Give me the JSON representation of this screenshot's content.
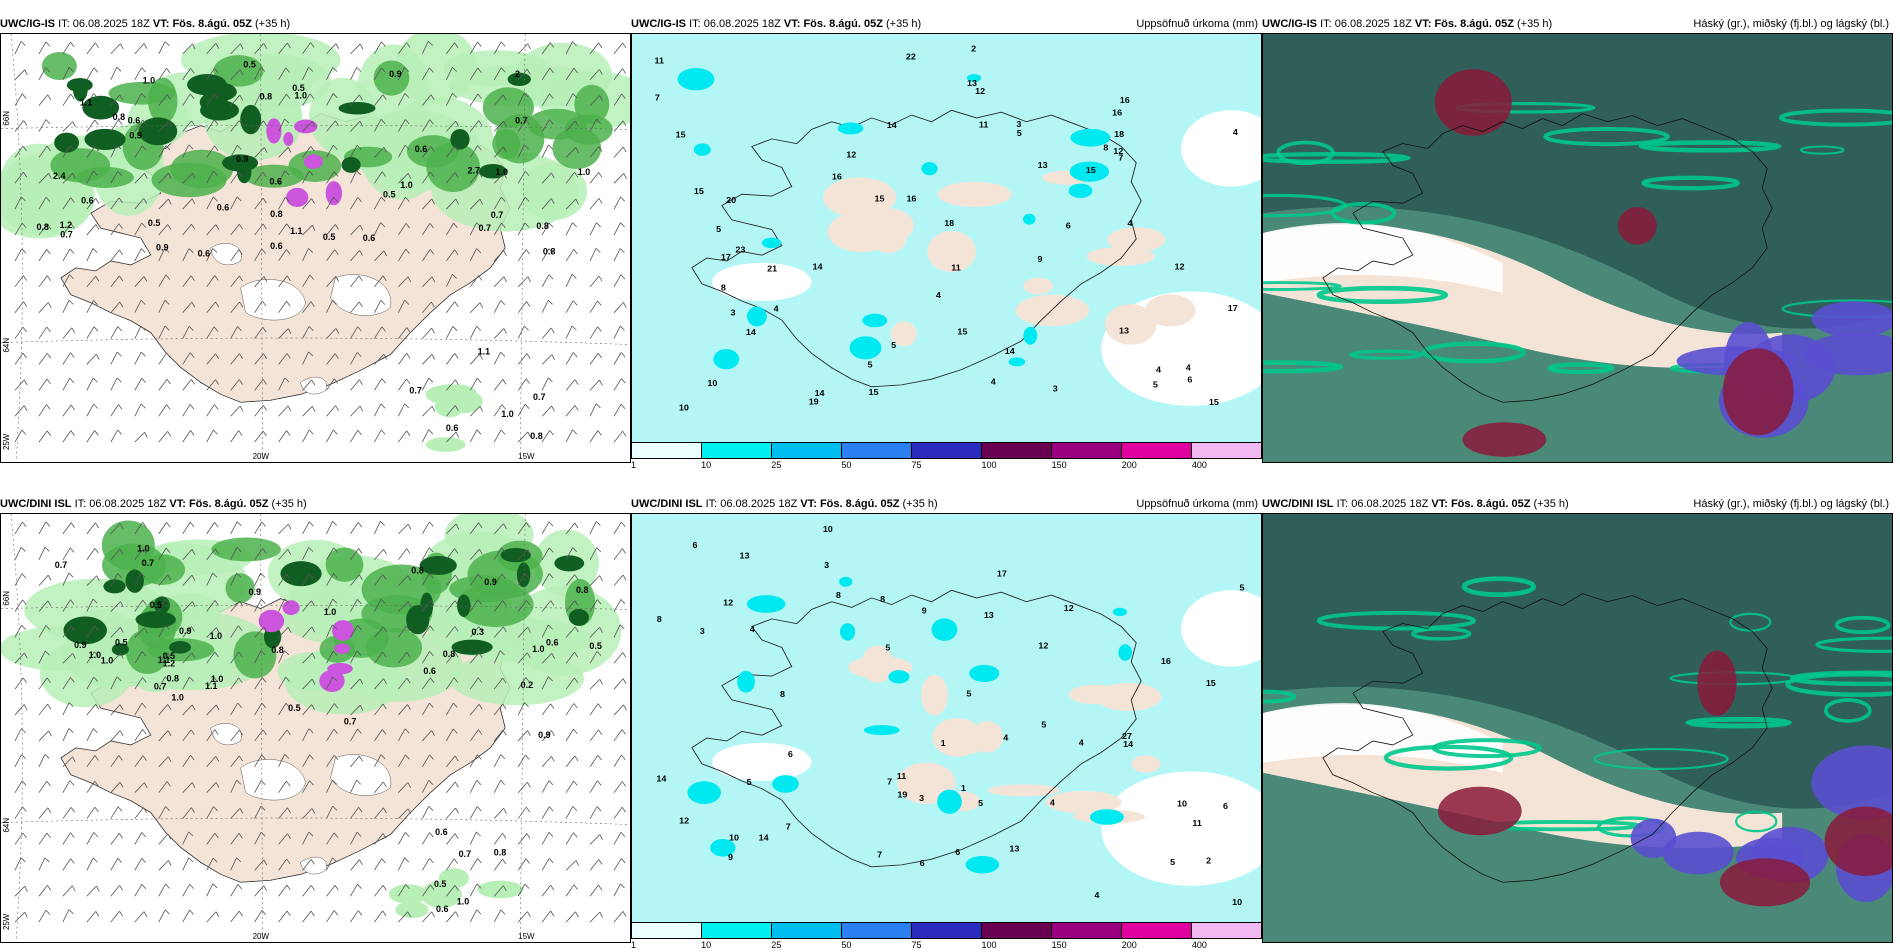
{
  "panels": [
    {
      "id": "top-left",
      "model": "UWC/IG-IS",
      "it_label": "IT:",
      "it_value": "06.08.2025 18Z",
      "vt_label": "VT:",
      "vt_value": "Fös. 8.ágú. 05Z",
      "lead": "(+35 h)",
      "right_title": "",
      "kind": "precip-wind",
      "labels": [
        "0.9",
        "0.6",
        "2",
        "1.0",
        "0.8",
        "0.5",
        "0.7",
        "1.0",
        "1.2",
        "0.6",
        "0.8",
        "1.1",
        "0.8",
        "0.9",
        "1.0",
        "0.6",
        "0.5",
        "0.6",
        "2.4",
        "2.7",
        "1.0",
        "1.1",
        "0.9",
        "0.6",
        "0.8",
        "0.5",
        "0.7",
        "0.7",
        "0.6",
        "0.8",
        "0.9",
        "1.0",
        "0.6",
        "0.6",
        "0.5",
        "0.8",
        "0.5",
        "0.7",
        "1.0",
        "0.7",
        "0.8",
        "0.6",
        "1.1",
        "0.7"
      ],
      "axis": {
        "lat1": "66N",
        "lat2": "64N",
        "lon1": "25W",
        "lon2": "20W",
        "lon3": "15W"
      }
    },
    {
      "id": "top-middle",
      "model": "UWC/IG-IS",
      "it_label": "IT:",
      "it_value": "06.08.2025 18Z",
      "vt_label": "VT:",
      "vt_value": "Fös. 8.ágú. 05Z",
      "lead": "(+35 h)",
      "right_title": "Uppsöfnuð úrkoma (mm)",
      "kind": "accum",
      "labels": [
        "4",
        "2",
        "3",
        "5",
        "4",
        "8",
        "15",
        "11",
        "15",
        "22",
        "17",
        "11",
        "12",
        "12",
        "14",
        "20",
        "11",
        "10",
        "13",
        "12",
        "7",
        "8",
        "4",
        "6",
        "16",
        "15",
        "14",
        "15",
        "14",
        "18",
        "15",
        "16",
        "10",
        "13",
        "14",
        "23",
        "19",
        "18",
        "17",
        "13",
        "14",
        "16",
        "16",
        "21",
        "15",
        "15",
        "12",
        "9",
        "3",
        "3",
        "4",
        "5",
        "6",
        "4",
        "5",
        "4",
        "5",
        "5",
        "7",
        "4"
      ],
      "axis": {}
    },
    {
      "id": "top-right",
      "model": "UWC/IG-IS",
      "it_label": "IT:",
      "it_value": "06.08.2025 18Z",
      "vt_label": "VT:",
      "vt_value": "Fös. 8.ágú. 05Z",
      "lead": "(+35 h)",
      "right_title": "Háský (gr.), miðský (fj.bl.) og lágský (bl.)",
      "kind": "cloud",
      "labels": [],
      "axis": {}
    },
    {
      "id": "bottom-left",
      "model": "UWC/DINI ISL",
      "it_label": "IT:",
      "it_value": "06.08.2025 18Z",
      "vt_label": "VT:",
      "vt_value": "Fös. 8.ágú. 05Z",
      "lead": "(+35 h)",
      "right_title": "",
      "kind": "precip-wind",
      "labels": [
        "1.0",
        "0.9",
        "0.8",
        "0.5",
        "0.9",
        "0.7",
        "1.0",
        "0.5",
        "0.8",
        "0.6",
        "0.9",
        "1.0",
        "0.6",
        "0.7",
        "1.1",
        "0.8",
        "0.7",
        "1.0",
        "0.5",
        "0.3",
        "0.8",
        "1.0",
        "1.2",
        "0.9",
        "0.5",
        "1.0",
        "0.2",
        "0.5",
        "1.0",
        "0.9",
        "0.7",
        "1.0",
        "1.1",
        "0.8",
        "0.7",
        "0.6",
        "0.6",
        "0.5",
        "0.8",
        "1.0"
      ],
      "axis": {
        "lat1": "66N",
        "lat2": "64N",
        "lon1": "25W",
        "lon2": "20W",
        "lon3": "15W"
      }
    },
    {
      "id": "bottom-middle",
      "model": "UWC/DINI ISL",
      "it_label": "IT:",
      "it_value": "06.08.2025 18Z",
      "vt_label": "VT:",
      "vt_value": "Fös. 8.ágú. 05Z",
      "lead": "(+35 h)",
      "right_title": "Uppsöfnuð úrkoma (mm)",
      "kind": "accum",
      "labels": [
        "3",
        "4",
        "5",
        "7",
        "10",
        "12",
        "14",
        "16",
        "8",
        "10",
        "12",
        "14",
        "13",
        "6",
        "4",
        "5",
        "8",
        "10",
        "11",
        "13",
        "7",
        "5",
        "4",
        "3",
        "6",
        "6",
        "8",
        "9",
        "6",
        "5",
        "4",
        "5",
        "7",
        "8",
        "12",
        "14",
        "19",
        "27",
        "17",
        "13",
        "10",
        "11",
        "12",
        "15",
        "9",
        "3",
        "5",
        "5",
        "6",
        "1",
        "1",
        "2",
        "4"
      ],
      "axis": {}
    },
    {
      "id": "bottom-right",
      "model": "UWC/DINI ISL",
      "it_label": "IT:",
      "it_value": "06.08.2025 18Z",
      "vt_label": "VT:",
      "vt_value": "Fös. 8.ágú. 05Z",
      "lead": "(+35 h)",
      "right_title": "Háský (gr.), miðský (fj.bl.) og lágský (bl.)",
      "kind": "cloud",
      "labels": [],
      "axis": {}
    }
  ],
  "colorbar": {
    "ticks": [
      "1",
      "10",
      "25",
      "50",
      "75",
      "100",
      "150",
      "200",
      "400"
    ],
    "colors": [
      "#eaffff",
      "#00f0f0",
      "#00bff0",
      "#2b7ff0",
      "#2b2bc0",
      "#6a0050",
      "#9a0080",
      "#e000a0",
      "#f2b8f2"
    ]
  },
  "palette": {
    "land": "#f4e4d8",
    "sea_accum": "#b4f6f6",
    "green_light": "#b7efb7",
    "green_mid": "#4cb24c",
    "green_dark": "#115e22",
    "magenta": "#cc55dd",
    "cloud_high": "#2f5f58",
    "cloud_mid": "#00c88c",
    "cloud_low": "#5a4fd0",
    "cloud_dark_red": "#8a1a3a"
  }
}
